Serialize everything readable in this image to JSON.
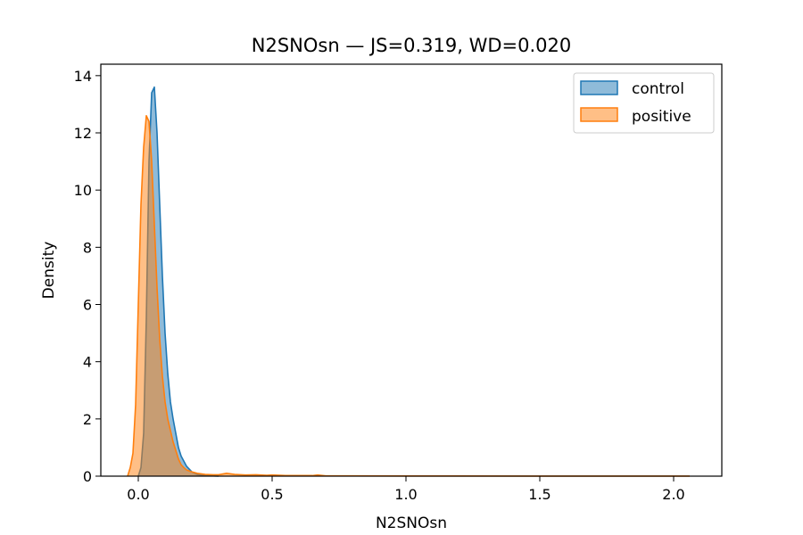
{
  "chart_data": {
    "type": "area",
    "title": "N2SNOsn — JS=0.319, WD=0.020",
    "xlabel": "N2SNOsn",
    "ylabel": "Density",
    "xlim": [
      -0.14,
      2.18
    ],
    "ylim": [
      0,
      14.4
    ],
    "xticks": [
      0.0,
      0.5,
      1.0,
      1.5,
      2.0
    ],
    "xtick_labels": [
      "0.0",
      "0.5",
      "1.0",
      "1.5",
      "2.0"
    ],
    "yticks": [
      0,
      2,
      4,
      6,
      8,
      10,
      12,
      14
    ],
    "ytick_labels": [
      "0",
      "2",
      "4",
      "6",
      "8",
      "10",
      "12",
      "14"
    ],
    "grid": false,
    "legend_position": "upper-right",
    "series": [
      {
        "name": "control",
        "color": "#1f77b4",
        "x": [
          0.0,
          0.01,
          0.02,
          0.03,
          0.04,
          0.05,
          0.06,
          0.07,
          0.08,
          0.09,
          0.1,
          0.11,
          0.12,
          0.13,
          0.14,
          0.15,
          0.16,
          0.18,
          0.2,
          0.22,
          0.25,
          0.3
        ],
        "y": [
          0.0,
          0.3,
          1.5,
          5.5,
          11.0,
          13.4,
          13.6,
          12.0,
          9.5,
          7.0,
          5.0,
          3.6,
          2.6,
          2.0,
          1.5,
          1.0,
          0.7,
          0.35,
          0.15,
          0.06,
          0.02,
          0.0
        ]
      },
      {
        "name": "positive",
        "color": "#ff7f0e",
        "x": [
          -0.04,
          -0.03,
          -0.02,
          -0.01,
          0.0,
          0.01,
          0.02,
          0.03,
          0.04,
          0.05,
          0.06,
          0.07,
          0.08,
          0.09,
          0.1,
          0.11,
          0.12,
          0.13,
          0.14,
          0.15,
          0.16,
          0.17,
          0.18,
          0.2,
          0.22,
          0.25,
          0.28,
          0.3,
          0.33,
          0.36,
          0.4,
          0.44,
          0.48,
          0.5,
          0.55,
          0.6,
          0.65,
          0.67,
          0.7,
          0.8,
          1.0,
          1.5,
          2.06
        ],
        "y": [
          0.0,
          0.3,
          0.8,
          2.5,
          6.0,
          9.5,
          11.5,
          12.6,
          12.4,
          11.0,
          8.8,
          6.6,
          4.8,
          3.5,
          2.6,
          2.0,
          1.6,
          1.2,
          0.9,
          0.6,
          0.4,
          0.3,
          0.22,
          0.15,
          0.1,
          0.06,
          0.05,
          0.05,
          0.1,
          0.06,
          0.04,
          0.05,
          0.03,
          0.04,
          0.02,
          0.02,
          0.02,
          0.04,
          0.01,
          0.01,
          0.005,
          0.003,
          0.002
        ]
      }
    ]
  }
}
